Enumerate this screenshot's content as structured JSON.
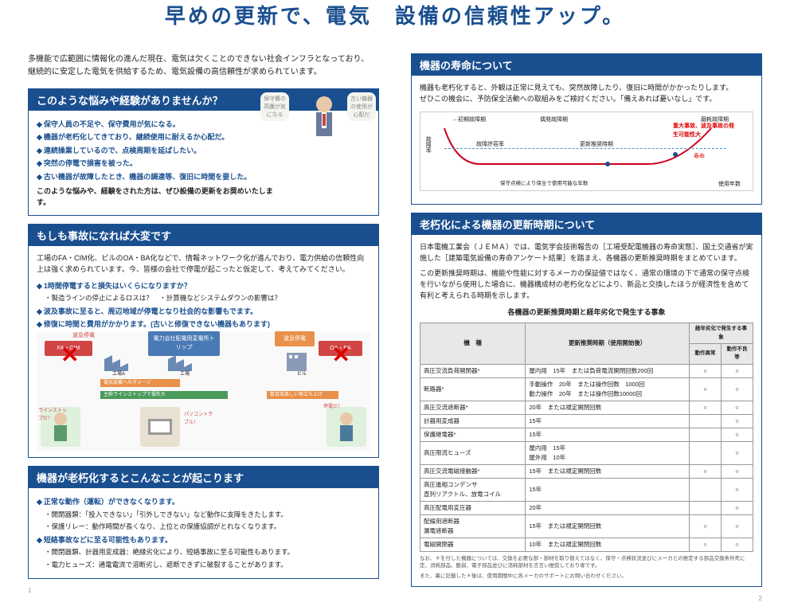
{
  "header": {
    "title": "早めの更新で、電気　設備の信頼性アップ。",
    "intro_line1": "多機能で広範囲に情報化の進んだ現在、電気は欠くことのできない社会インフラとなっており、",
    "intro_line2": "継続的に安定した電気を供給するため、電気設備の高信頼性が求められています。"
  },
  "left": {
    "box1": {
      "header": "このような悩みや経験がありませんか？",
      "bullets": [
        "保守人員の不足や、保守費用が気になる。",
        "機器が老朽化してきており、継続使用に耐えるか心配だ。",
        "連続操業しているので、点検周期を延ばしたい。",
        "突然の停電で損害を被った。",
        "古い機器が故障したとき、機器の調達等、復旧に時間を要した。"
      ],
      "footer": "このような悩みや、経験をされた方は、ぜひ設備の更新をお奨めいたします。",
      "speech_left": "保守費の高騰が気になる",
      "speech_right": "古い機器の使用が心配だ"
    },
    "box2": {
      "header": "もしも事故になれば大変です",
      "intro": "工場のFA・CIM化、ビルのOA・BA化などで、情報ネットワーク化が進んでおり、電力供給の信頼性向上は強く求められています。今、皆様の会社で停電が起こったと仮定して、考えてみてください。",
      "q1": "1時間停電すると損失はいくらになりますか？",
      "q1_sub": "・製造ラインの停止によるロスは？　・計算機などシステムダウンの影響は？",
      "q2": "波及事故に至ると、周辺地域が停電となり社会的な影響もでます。",
      "q3": "修復に時間と費用がかかります。(古いと修復できない機器もあります)",
      "diag": {
        "top_node": "電力会社配電用変電所トリップ",
        "wave_node": "波及停電",
        "factory_a": "工場A",
        "factory": "工場",
        "building": "ビル",
        "fa": "FA・CIM",
        "oa": "OA・BA",
        "damage": "電気設備へのダメージ",
        "bar1": "主幹ラインストップで損失大",
        "bar2": "数百倍楽しい再立ち上げ",
        "line_stop": "ラインストップだ！",
        "pc_trouble": "パソコントラブル！",
        "power_out": "停電だ！"
      }
    },
    "box3": {
      "header": "機器が老朽化するとこんなことが起こります",
      "h1": "正常な動作（運転）ができなくなります。",
      "h1_sub1": "・開閉器類：「投入できない」「引外しできない」など動作に支障をきたします。",
      "h1_sub2": "・保護リレー：動作時間が長くなり、上位との保護協調がとれなくなります。",
      "h2": "短絡事故などに至る可能性もあります。",
      "h2_sub1": "・開閉器類、計器用変成器：絶縁劣化により、短絡事故に至る可能性もあります。",
      "h2_sub2": "・電力ヒューズ：通電電流で溶断劣し、遮断できずに破裂することがあります。"
    },
    "page": "1"
  },
  "right": {
    "box1": {
      "header": "機器の寿命について",
      "text1": "機器も老朽化すると、外観は正常に見えても、突然故障したり、復旧に時間がかかったりします。",
      "text2": "ぜひこの機会に、予防保全活動への取組みをご検討ください。「備えあれば憂いなし」です。",
      "chart": {
        "ylabel": "故障率",
        "xlabel": "使用年数",
        "early": "初期故障期",
        "random": "偶発故障期",
        "wear": "磨耗故障期",
        "allow": "故障許容率",
        "update": "更新推奨時期",
        "life": "寿命",
        "red_text": "重大事故、波及事故の発生可能性大",
        "note": "保守点検により保全で使用可能な年数",
        "colors": {
          "curve": "#d00020",
          "dash": "#4a90d9",
          "marker": "#1a4f8f"
        }
      }
    },
    "box2": {
      "header": "老朽化による機器の更新時期について",
      "text1": "日本電機工業会（ＪＥＭＡ）では、電気学会技術報告の［工場受配電機器の寿命実態］、国土交通省が実施した［建築電気設備の寿命アンケート結果］を踏まえ、各機器の更新推奨時期をまとめています。",
      "text2": "この更新推奨時期は、機能や性能に対するメーカの保証値ではなく、通常の環境の下で通常の保守点検を行いながら使用した場合に、機器構成材の老朽化などにより、新品と交換したほうが経済性を含めて有利と考えられる時期を示します。",
      "table_caption": "各機器の更新推奨時期と経年劣化で発生する事象",
      "table": {
        "headers": [
          "機　種",
          "更新推奨時期（使用開始後）",
          "経年劣化で発生する事象"
        ],
        "sub_headers": [
          "動作異常",
          "動作不良等"
        ],
        "rows": [
          {
            "name": "高圧交流負荷開閉器*",
            "period": "屋内用　15年　または負荷電流開閉回数200回",
            "a": "○",
            "b": "○"
          },
          {
            "name": "断路器*",
            "period": "手動操作　20年　または操作回数　1000回\n動力操作　20年　または操作回数10000回",
            "a": "○",
            "b": "○"
          },
          {
            "name": "高圧交流遮断器*",
            "period": "20年　または規定開閉回数",
            "a": "○",
            "b": "○"
          },
          {
            "name": "計器用変成器",
            "period": "15年",
            "a": "",
            "b": "○"
          },
          {
            "name": "保護継電器*",
            "period": "15年",
            "a": "",
            "b": "○"
          },
          {
            "name": "高圧限流ヒューズ",
            "period": "屋内用　15年\n屋外用　10年",
            "a": "",
            "b": "○"
          },
          {
            "name": "高圧交流電磁接触器*",
            "period": "15年　または規定開閉回数",
            "a": "○",
            "b": "○"
          },
          {
            "name": "高圧進相コンデンサ\n直列リアクトル、放電コイル",
            "period": "15年",
            "a": "",
            "b": "○"
          },
          {
            "name": "高圧配電用変圧器",
            "period": "20年",
            "a": "",
            "b": "○"
          },
          {
            "name": "配線用遮断器\n漏電遮断器",
            "period": "15年　または規定開閉回数",
            "a": "○",
            "b": "○"
          },
          {
            "name": "電磁開閉器",
            "period": "10年　または規定開閉回数",
            "a": "○",
            "b": "○"
          }
        ]
      },
      "note1": "なお、＊を付した機器については、交換を必要な部・部材を取り替えてはなく、保守・点検状況並びにメーカとの推定する部品交換条件死に定、消耗部品、脆弱、電子部品並びに消耗部材を言言い推奨しており専です。",
      "note2": "また、裏に記載した＊後は、使用期間中に各メーカのサポートにお問い合わせください。"
    },
    "page": "2"
  }
}
